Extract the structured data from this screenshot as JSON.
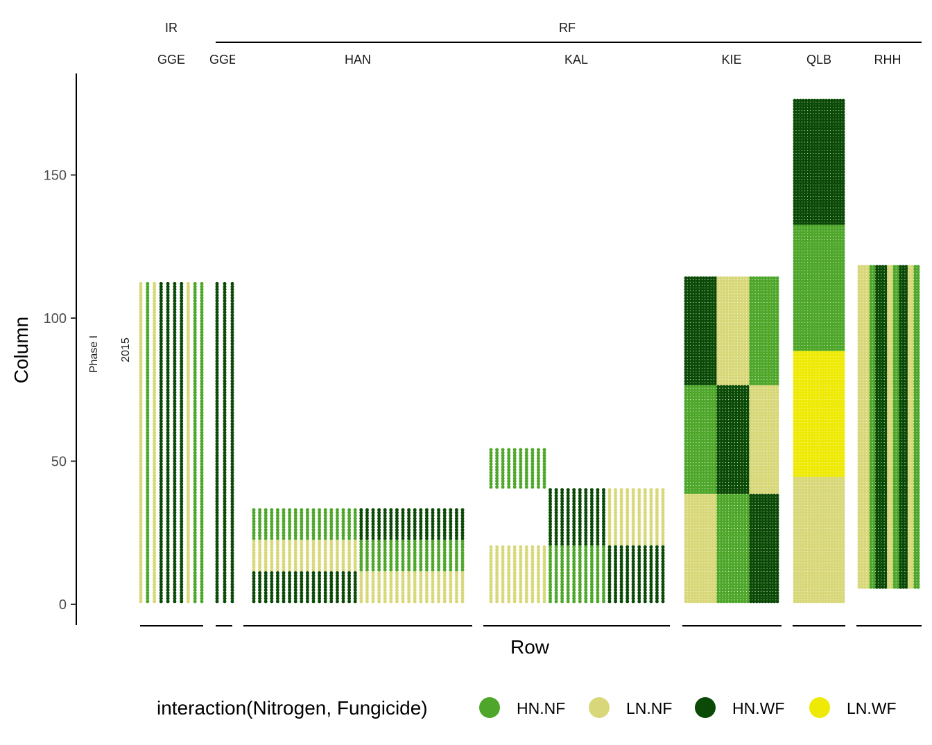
{
  "chart_data": {
    "type": "scatter",
    "xlabel": "Row",
    "ylabel": "Column",
    "yticks": [
      0,
      50,
      100,
      150
    ],
    "ylim": [
      -7,
      185
    ],
    "side_labels": [
      "Phase I",
      "2015"
    ],
    "top_groups": [
      {
        "label": "IR",
        "panels": [
          "GGE"
        ]
      },
      {
        "label": "RF",
        "panels": [
          "GGE_RF",
          "HAN",
          "KAL",
          "KIE",
          "QLB",
          "RHH"
        ]
      }
    ],
    "legend": {
      "title": "interaction(Nitrogen, Fungicide)",
      "position": "bottom",
      "entries": [
        {
          "key": "HN.NF",
          "label": "HN.NF",
          "color": "#4ea72a"
        },
        {
          "key": "LN.NF",
          "label": "LN.NF",
          "color": "#d8d87a"
        },
        {
          "key": "HN.WF",
          "label": "HN.WF",
          "color": "#0b4a06"
        },
        {
          "key": "LN.WF",
          "label": "LN.WF",
          "color": "#eeea05"
        }
      ]
    },
    "panels": [
      {
        "key": "GGE",
        "label": "GGE",
        "label_display": "GGE",
        "rows": 10,
        "blocks": [
          {
            "r0": 1,
            "r1": 1,
            "c0": 1,
            "c1": 112,
            "t": "LN.NF"
          },
          {
            "r0": 2,
            "r1": 2,
            "c0": 1,
            "c1": 112,
            "t": "HN.NF"
          },
          {
            "r0": 3,
            "r1": 3,
            "c0": 1,
            "c1": 112,
            "t": "LN.NF"
          },
          {
            "r0": 4,
            "r1": 7,
            "c0": 1,
            "c1": 112,
            "t": "HN.WF"
          },
          {
            "r0": 8,
            "r1": 8,
            "c0": 1,
            "c1": 112,
            "t": "LN.NF"
          },
          {
            "r0": 9,
            "r1": 9,
            "c0": 1,
            "c1": 112,
            "t": "HN.NF"
          },
          {
            "r0": 10,
            "r1": 10,
            "c0": 1,
            "c1": 112,
            "t": "HN.NF"
          }
        ]
      },
      {
        "key": "GGE_RF",
        "label": "GGE",
        "label_display": "GGE",
        "rows": 3,
        "blocks": [
          {
            "r0": 1,
            "r1": 3,
            "c0": 1,
            "c1": 112,
            "t": "HN.WF"
          }
        ]
      },
      {
        "key": "HAN",
        "label": "HAN",
        "label_display": "HAN",
        "rows": 36,
        "blocks": [
          {
            "r0": 1,
            "r1": 18,
            "c0": 23,
            "c1": 33,
            "t": "HN.NF"
          },
          {
            "r0": 1,
            "r1": 18,
            "c0": 12,
            "c1": 22,
            "t": "LN.NF"
          },
          {
            "r0": 1,
            "r1": 18,
            "c0": 1,
            "c1": 11,
            "t": "HN.WF"
          },
          {
            "r0": 19,
            "r1": 36,
            "c0": 23,
            "c1": 33,
            "t": "HN.WF"
          },
          {
            "r0": 19,
            "r1": 36,
            "c0": 12,
            "c1": 22,
            "t": "HN.NF"
          },
          {
            "r0": 19,
            "r1": 36,
            "c0": 1,
            "c1": 11,
            "t": "LN.NF"
          }
        ]
      },
      {
        "key": "KAL",
        "label": "KAL",
        "label_display": "KAL",
        "rows": 30,
        "blocks": [
          {
            "r0": 1,
            "r1": 10,
            "c0": 41,
            "c1": 54,
            "t": "HN.NF"
          },
          {
            "r0": 1,
            "r1": 10,
            "c0": 1,
            "c1": 20,
            "t": "LN.NF"
          },
          {
            "r0": 11,
            "r1": 20,
            "c0": 21,
            "c1": 40,
            "t": "HN.WF"
          },
          {
            "r0": 11,
            "r1": 20,
            "c0": 1,
            "c1": 20,
            "t": "HN.NF"
          },
          {
            "r0": 21,
            "r1": 30,
            "c0": 21,
            "c1": 40,
            "t": "LN.NF"
          },
          {
            "r0": 21,
            "r1": 30,
            "c0": 1,
            "c1": 20,
            "t": "HN.WF"
          }
        ]
      },
      {
        "key": "KIE",
        "label": "KIE",
        "label_display": "KIE",
        "rows": 32,
        "blocks": [
          {
            "r0": 1,
            "r1": 11,
            "c0": 77,
            "c1": 114,
            "t": "HN.WF"
          },
          {
            "r0": 1,
            "r1": 11,
            "c0": 39,
            "c1": 76,
            "t": "HN.NF"
          },
          {
            "r0": 1,
            "r1": 11,
            "c0": 1,
            "c1": 38,
            "t": "LN.NF"
          },
          {
            "r0": 12,
            "r1": 22,
            "c0": 77,
            "c1": 114,
            "t": "LN.NF"
          },
          {
            "r0": 12,
            "r1": 22,
            "c0": 39,
            "c1": 76,
            "t": "HN.WF"
          },
          {
            "r0": 12,
            "r1": 22,
            "c0": 1,
            "c1": 38,
            "t": "HN.NF"
          },
          {
            "r0": 23,
            "r1": 32,
            "c0": 77,
            "c1": 114,
            "t": "HN.NF"
          },
          {
            "r0": 23,
            "r1": 32,
            "c0": 39,
            "c1": 76,
            "t": "LN.NF"
          },
          {
            "r0": 23,
            "r1": 32,
            "c0": 1,
            "c1": 38,
            "t": "HN.WF"
          }
        ]
      },
      {
        "key": "QLB",
        "label": "QLB",
        "label_display": "QLB",
        "rows": 18,
        "blocks": [
          {
            "r0": 1,
            "r1": 18,
            "c0": 133,
            "c1": 176,
            "t": "HN.WF"
          },
          {
            "r0": 1,
            "r1": 18,
            "c0": 89,
            "c1": 132,
            "t": "HN.NF"
          },
          {
            "r0": 1,
            "r1": 18,
            "c0": 45,
            "c1": 88,
            "t": "LN.WF"
          },
          {
            "r0": 1,
            "r1": 18,
            "c0": 1,
            "c1": 44,
            "t": "LN.NF"
          }
        ]
      },
      {
        "key": "RHH",
        "label": "RHH",
        "label_display": "RHH",
        "rows": 21,
        "blocks": [
          {
            "r0": 1,
            "r1": 4,
            "c0": 6,
            "c1": 118,
            "t": "LN.NF"
          },
          {
            "r0": 5,
            "r1": 6,
            "c0": 6,
            "c1": 118,
            "t": "HN.NF"
          },
          {
            "r0": 7,
            "r1": 10,
            "c0": 6,
            "c1": 118,
            "t": "HN.WF"
          },
          {
            "r0": 11,
            "r1": 12,
            "c0": 6,
            "c1": 118,
            "t": "LN.NF"
          },
          {
            "r0": 13,
            "r1": 14,
            "c0": 6,
            "c1": 118,
            "t": "HN.NF"
          },
          {
            "r0": 15,
            "r1": 17,
            "c0": 6,
            "c1": 118,
            "t": "HN.WF"
          },
          {
            "r0": 18,
            "r1": 19,
            "c0": 6,
            "c1": 118,
            "t": "LN.NF"
          },
          {
            "r0": 20,
            "r1": 21,
            "c0": 6,
            "c1": 118,
            "t": "HN.NF"
          }
        ]
      }
    ]
  }
}
